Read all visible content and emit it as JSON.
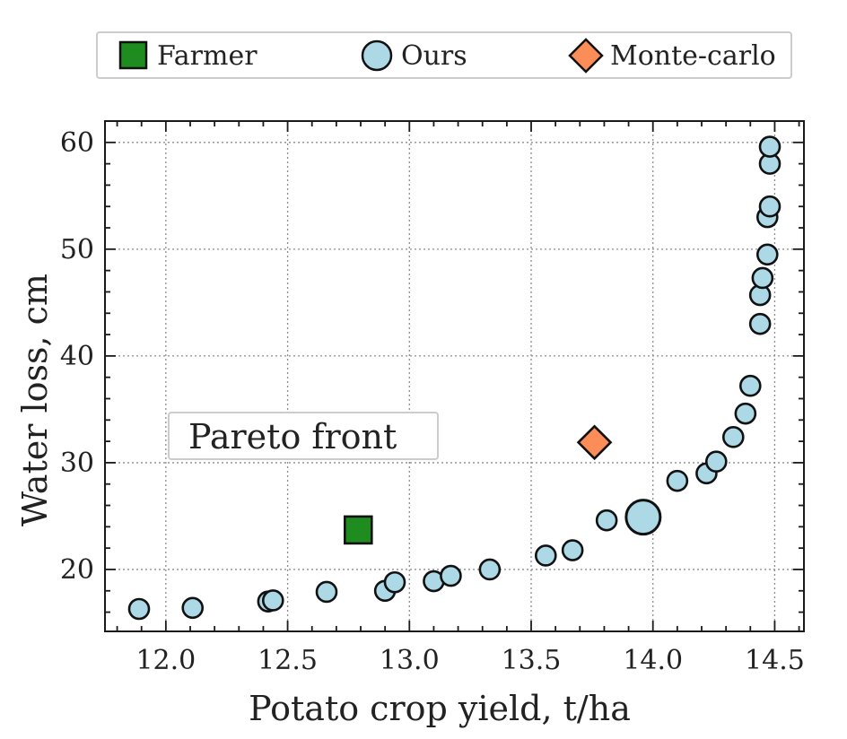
{
  "chart_data": {
    "type": "scatter",
    "title": "",
    "xlabel": "Potato crop yield, t/ha",
    "ylabel": "Water loss, cm",
    "xlim": [
      11.75,
      14.62
    ],
    "ylim": [
      14.2,
      62
    ],
    "x_ticks": [
      "12.0",
      "12.5",
      "13.0",
      "13.5",
      "14.0",
      "14.5"
    ],
    "x_tick_values": [
      12.0,
      12.5,
      13.0,
      13.5,
      14.0,
      14.5
    ],
    "y_ticks": [
      "20",
      "30",
      "40",
      "50",
      "60"
    ],
    "y_tick_values": [
      20,
      30,
      40,
      50,
      60
    ],
    "x_minor_step": 0.1,
    "y_minor_step": 2,
    "grid": true,
    "legend_position": "top, outside plot",
    "legend": [
      {
        "name": "Farmer",
        "marker": "square",
        "color": "#1e8c1e"
      },
      {
        "name": "Ours",
        "marker": "circle",
        "color": "#add8e6"
      },
      {
        "name": "Monte-carlo",
        "marker": "diamond",
        "color": "#fc8d59"
      }
    ],
    "annotation": {
      "text": "Pareto front",
      "x": 12.06,
      "y": 31.5
    },
    "series": [
      {
        "name": "Ours",
        "marker": "circle",
        "color": "#add8e6",
        "points": [
          [
            11.89,
            16.3
          ],
          [
            12.11,
            16.4
          ],
          [
            12.42,
            17.0
          ],
          [
            12.44,
            17.1
          ],
          [
            12.66,
            17.9
          ],
          [
            12.9,
            18.0
          ],
          [
            12.94,
            18.8
          ],
          [
            13.1,
            18.9
          ],
          [
            13.17,
            19.4
          ],
          [
            13.33,
            20.0
          ],
          [
            13.56,
            21.3
          ],
          [
            13.67,
            21.8
          ],
          [
            13.81,
            24.6
          ],
          [
            14.1,
            28.3
          ],
          [
            14.22,
            29.0
          ],
          [
            14.26,
            30.1
          ],
          [
            14.33,
            32.4
          ],
          [
            14.38,
            34.6
          ],
          [
            14.4,
            37.2
          ],
          [
            14.44,
            43.0
          ],
          [
            14.44,
            45.7
          ],
          [
            14.45,
            47.3
          ],
          [
            14.47,
            49.5
          ],
          [
            14.47,
            53.0
          ],
          [
            14.48,
            54.0
          ],
          [
            14.48,
            58.0
          ],
          [
            14.48,
            59.6
          ]
        ],
        "highlight": [
          13.96,
          24.9
        ]
      },
      {
        "name": "Farmer",
        "marker": "square",
        "color": "#1e8c1e",
        "points": [
          [
            12.79,
            23.7
          ]
        ]
      },
      {
        "name": "Monte-carlo",
        "marker": "diamond",
        "color": "#fc8d59",
        "points": [
          [
            13.76,
            31.9
          ]
        ]
      }
    ]
  }
}
